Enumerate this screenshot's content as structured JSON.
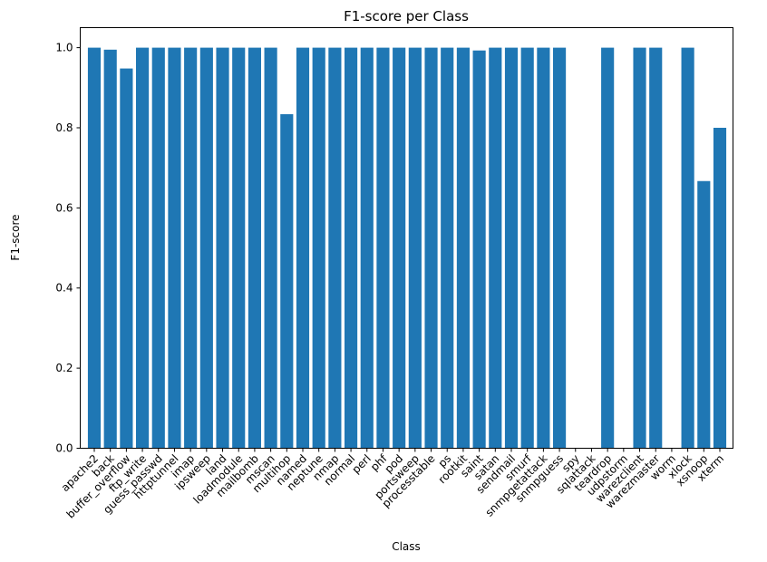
{
  "chart_data": {
    "type": "bar",
    "title": "F1-score per Class",
    "xlabel": "Class",
    "ylabel": "F1-score",
    "ylim": [
      0,
      1.05
    ],
    "yticks": [
      "0.0",
      "0.2",
      "0.4",
      "0.6",
      "0.8",
      "1.0"
    ],
    "bar_color": "#1f77b4",
    "grid": false,
    "categories": [
      "apache2",
      "back",
      "buffer_overflow",
      "ftp_write",
      "guess_passwd",
      "httptunnel",
      "imap",
      "ipsweep",
      "land",
      "loadmodule",
      "mailbomb",
      "mscan",
      "multihop",
      "named",
      "neptune",
      "nmap",
      "normal",
      "perl",
      "phf",
      "pod",
      "portsweep",
      "processtable",
      "ps",
      "rootkit",
      "saint",
      "satan",
      "sendmail",
      "smurf",
      "snmpgetattack",
      "snmpguess",
      "spy",
      "sqlattack",
      "teardrop",
      "udpstorm",
      "warezclient",
      "warezmaster",
      "worm",
      "xlock",
      "xsnoop",
      "xterm"
    ],
    "values": [
      1.0,
      0.995,
      0.948,
      1.0,
      1.0,
      1.0,
      1.0,
      1.0,
      1.0,
      1.0,
      1.0,
      1.0,
      0.834,
      1.0,
      1.0,
      1.0,
      1.0,
      1.0,
      1.0,
      1.0,
      1.0,
      1.0,
      1.0,
      1.0,
      0.993,
      1.0,
      1.0,
      1.0,
      1.0,
      1.0,
      0,
      0,
      1.0,
      0,
      1.0,
      1.0,
      0,
      1.0,
      0.667,
      0.8
    ]
  }
}
